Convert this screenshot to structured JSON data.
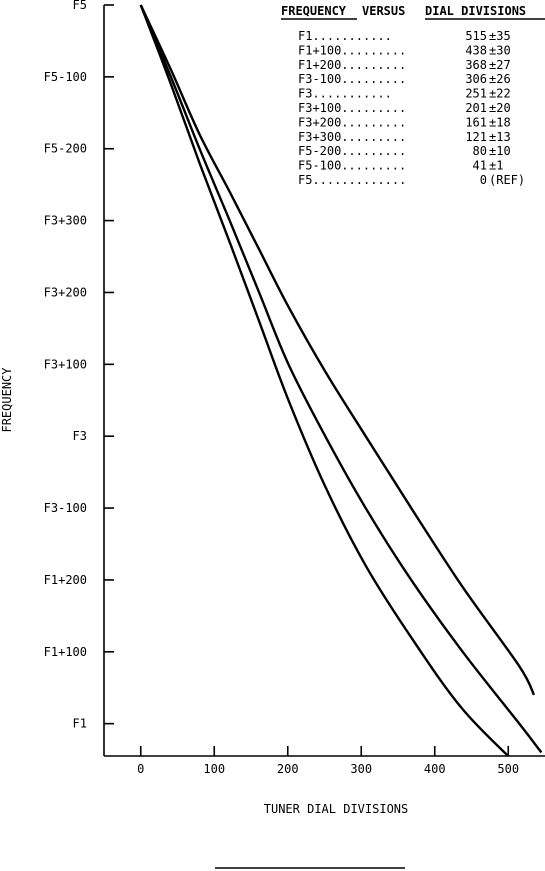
{
  "chart_data": {
    "type": "line",
    "title": "FREQUENCY VERSUS DIAL DIVISIONS",
    "title_parts": {
      "left": "FREQUENCY",
      "middle": "VERSUS",
      "right": "DIAL DIVISIONS"
    },
    "xlabel": "TUNER DIAL DIVISIONS",
    "ylabel": "FREQUENCY",
    "xlim": [
      -50,
      550
    ],
    "x_ticks": [
      0,
      100,
      200,
      300,
      400,
      500
    ],
    "y_ticks": [
      {
        "label": "F5",
        "level": 10
      },
      {
        "label": "F5-100",
        "level": 9
      },
      {
        "label": "F5-200",
        "level": 8
      },
      {
        "label": "F3+300",
        "level": 7
      },
      {
        "label": "F3+200",
        "level": 6
      },
      {
        "label": "F3+100",
        "level": 5
      },
      {
        "label": "F3",
        "level": 4
      },
      {
        "label": "F3-100",
        "level": 3
      },
      {
        "label": "F1+200",
        "level": 2
      },
      {
        "label": "F1+100",
        "level": 1
      },
      {
        "label": "F1",
        "level": 0
      }
    ],
    "ylim": [
      -0.45,
      10
    ],
    "table": [
      {
        "freq": "F1",
        "dots": "...........",
        "value": "515",
        "tol": "±35"
      },
      {
        "freq": "F1+100",
        "dots": ".........",
        "value": "438",
        "tol": "±30"
      },
      {
        "freq": "F1+200",
        "dots": ".........",
        "value": "368",
        "tol": "±27"
      },
      {
        "freq": "F3-100",
        "dots": ".........",
        "value": "306",
        "tol": "±26"
      },
      {
        "freq": "F3",
        "dots": "...........",
        "value": "251",
        "tol": "±22"
      },
      {
        "freq": "F3+100",
        "dots": ".........",
        "value": "201",
        "tol": "±20"
      },
      {
        "freq": "F3+200",
        "dots": ".........",
        "value": "161",
        "tol": "±18"
      },
      {
        "freq": "F3+300",
        "dots": ".........",
        "value": "121",
        "tol": "±13"
      },
      {
        "freq": "F5-200",
        "dots": ".........",
        "value": "80",
        "tol": "±10"
      },
      {
        "freq": "F5-100",
        "dots": ".........",
        "value": "41",
        "tol": "±1"
      },
      {
        "freq": "F5",
        "dots": ".............",
        "value": "0",
        "tol": "(REF)"
      }
    ],
    "series": [
      {
        "role": "lower",
        "points": [
          [
            0,
            10
          ],
          [
            41,
            9.1
          ],
          [
            80,
            8.2
          ],
          [
            121,
            7.4
          ],
          [
            161,
            6.6
          ],
          [
            201,
            5.8
          ],
          [
            251,
            4.9
          ],
          [
            306,
            4.0
          ],
          [
            368,
            3.0
          ],
          [
            438,
            1.9
          ],
          [
            515,
            0.8
          ],
          [
            535,
            0.4
          ]
        ]
      },
      {
        "role": "nominal",
        "points": [
          [
            0,
            10
          ],
          [
            41,
            9.0
          ],
          [
            80,
            8.0
          ],
          [
            121,
            7.0
          ],
          [
            161,
            6.0
          ],
          [
            201,
            5.0
          ],
          [
            251,
            4.0
          ],
          [
            306,
            3.0
          ],
          [
            368,
            2.0
          ],
          [
            438,
            1.0
          ],
          [
            515,
            0.0
          ],
          [
            545,
            -0.4
          ]
        ]
      },
      {
        "role": "upper",
        "points": [
          [
            0,
            10
          ],
          [
            41,
            8.9
          ],
          [
            80,
            7.8
          ],
          [
            121,
            6.7
          ],
          [
            161,
            5.6
          ],
          [
            201,
            4.5
          ],
          [
            251,
            3.3
          ],
          [
            306,
            2.2
          ],
          [
            368,
            1.2
          ],
          [
            438,
            0.2
          ],
          [
            515,
            -0.6
          ],
          [
            530,
            -0.75
          ]
        ]
      }
    ]
  }
}
